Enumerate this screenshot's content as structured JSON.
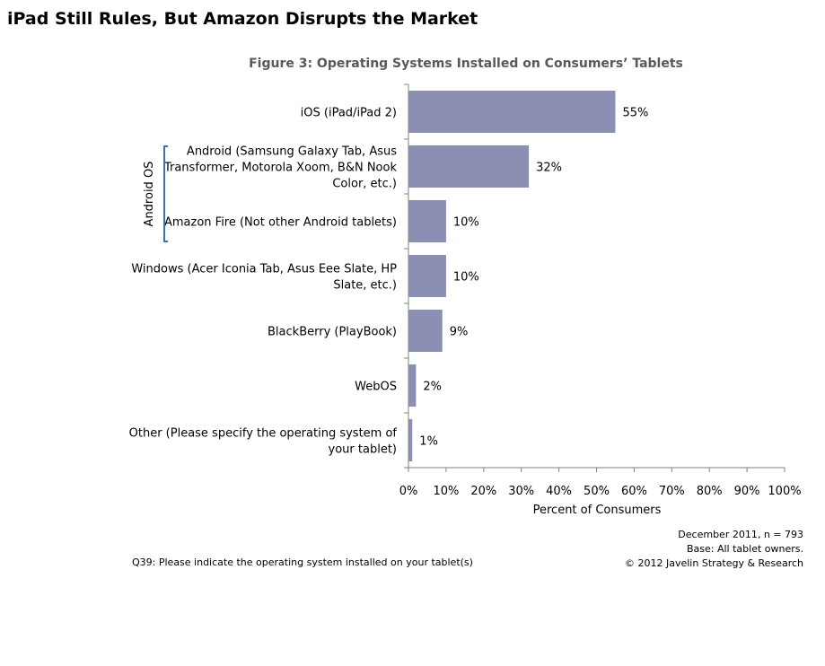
{
  "page_title": "iPad Still Rules, But Amazon Disrupts the Market",
  "footnote": "Q39: Please indicate the operating system installed on your tablet(s)",
  "credit": {
    "line1": "December 2011,  n = 793",
    "line2": "Base: All tablet owners.",
    "line3": "© 2012 Javelin Strategy & Research"
  },
  "chart_data": {
    "type": "bar",
    "orientation": "horizontal",
    "title": "Figure 3: Operating Systems Installed on Consumers’ Tablets",
    "xlabel": "Percent of Consumers",
    "ylabel": "",
    "xlim": [
      0,
      100
    ],
    "xticks": [
      "0%",
      "10%",
      "20%",
      "30%",
      "40%",
      "50%",
      "60%",
      "70%",
      "80%",
      "90%",
      "100%"
    ],
    "categories": [
      [
        "iOS (iPad/iPad 2)"
      ],
      [
        "Android (Samsung Galaxy Tab, Asus",
        "Transformer, Motorola Xoom, B&N Nook",
        "Color, etc.)"
      ],
      [
        "Amazon Fire (Not other Android tablets)"
      ],
      [
        "Windows (Acer Iconia Tab, Asus Eee Slate, HP",
        "Slate, etc.)"
      ],
      [
        "BlackBerry (PlayBook)"
      ],
      [
        "WebOS"
      ],
      [
        "Other (Please specify the operating system of",
        "your tablet)"
      ]
    ],
    "values": [
      55,
      32,
      10,
      10,
      9,
      2,
      1
    ],
    "data_labels": [
      "55%",
      "32%",
      "10%",
      "10%",
      "9%",
      "2%",
      "1%"
    ],
    "bar_color": "#8b8fb3",
    "bracket": {
      "label": "Android OS",
      "color": "#3b6fb6",
      "covers": [
        1,
        2
      ]
    },
    "grid": false,
    "legend": "none"
  }
}
